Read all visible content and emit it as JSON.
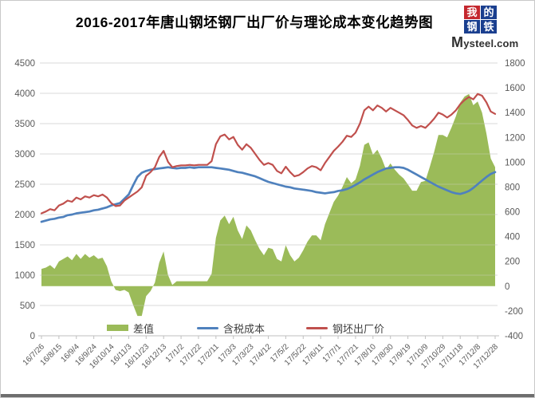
{
  "title": "2016-2017年唐山钢坯钢厂出厂价与理论成本变化趋势图",
  "logo": {
    "squares": [
      "我",
      "的",
      "钢",
      "铁"
    ],
    "site": "Mysteel.com",
    "square_red": "#c4272e",
    "square_blue": "#1a3f8f"
  },
  "legend": {
    "items": [
      {
        "label": "差值",
        "type": "area",
        "color": "#9bbb59"
      },
      {
        "label": "含税成本",
        "type": "line",
        "color": "#4f81bd"
      },
      {
        "label": "钢坯出厂价",
        "type": "line",
        "color": "#c0504d"
      }
    ]
  },
  "chart_data": {
    "type": "area",
    "subtype": "combo: area (right axis) + 2 lines (left axis)",
    "title": "2016-2017年唐山钢坯钢厂出厂价与理论成本变化趋势图",
    "xlabel": "",
    "ylabel": "",
    "grid": "horizontal",
    "legend_position": "bottom",
    "x_tick_labels": [
      "16/7/26",
      "16/8/15",
      "16/9/4",
      "16/9/24",
      "16/10/14",
      "16/11/3",
      "16/11/23",
      "16/12/13",
      "17/1/2",
      "17/1/22",
      "17/2/11",
      "17/3/3",
      "17/3/23",
      "17/4/12",
      "17/5/2",
      "17/5/22",
      "17/6/11",
      "17/7/1",
      "17/7/21",
      "17/8/10",
      "17/8/30",
      "17/9/19",
      "17/10/9",
      "17/10/29",
      "17/11/18",
      "17/12/8",
      "17/12/28"
    ],
    "points_per_tick_interval": 4,
    "sample_interval_days": 5,
    "left_axis": {
      "min": 0,
      "max": 4500,
      "step": 500,
      "ticks": [
        4500,
        4000,
        3500,
        3000,
        2500,
        2000,
        1500,
        1000,
        500,
        0
      ]
    },
    "right_axis": {
      "min": -400,
      "max": 1800,
      "step": 200,
      "ticks": [
        1800,
        1600,
        1400,
        1200,
        1000,
        800,
        600,
        400,
        200,
        0,
        -200,
        -400
      ]
    },
    "colors": {
      "grid": "#d9d9d9",
      "axis": "#bfbfbf",
      "tick_text": "#595959"
    },
    "series": [
      {
        "name": "差值",
        "type": "area",
        "axis": "right",
        "color": "#9bbb59",
        "values": [
          140,
          150,
          170,
          140,
          200,
          220,
          240,
          210,
          260,
          220,
          260,
          230,
          250,
          220,
          230,
          160,
          40,
          -30,
          -40,
          -30,
          -50,
          -150,
          -240,
          -240,
          -80,
          -40,
          30,
          190,
          280,
          90,
          10,
          40,
          40,
          40,
          40,
          40,
          40,
          40,
          40,
          100,
          390,
          530,
          570,
          500,
          560,
          450,
          380,
          490,
          450,
          370,
          300,
          250,
          310,
          300,
          220,
          200,
          330,
          250,
          200,
          230,
          290,
          360,
          410,
          410,
          370,
          500,
          590,
          680,
          730,
          800,
          880,
          830,
          860,
          970,
          1140,
          1160,
          1060,
          1100,
          1030,
          940,
          990,
          940,
          900,
          870,
          820,
          770,
          770,
          840,
          850,
          960,
          1080,
          1220,
          1220,
          1200,
          1280,
          1370,
          1480,
          1530,
          1550,
          1460,
          1490,
          1400,
          1230,
          1030,
          960
        ]
      },
      {
        "name": "含税成本",
        "type": "line",
        "axis": "left",
        "color": "#4f81bd",
        "values": [
          1880,
          1900,
          1920,
          1930,
          1950,
          1960,
          1990,
          2000,
          2020,
          2030,
          2040,
          2050,
          2070,
          2080,
          2100,
          2120,
          2150,
          2170,
          2190,
          2260,
          2330,
          2480,
          2620,
          2690,
          2720,
          2740,
          2750,
          2760,
          2770,
          2780,
          2770,
          2760,
          2770,
          2770,
          2780,
          2770,
          2780,
          2780,
          2780,
          2780,
          2770,
          2760,
          2750,
          2740,
          2720,
          2700,
          2690,
          2670,
          2650,
          2630,
          2600,
          2570,
          2540,
          2520,
          2500,
          2480,
          2460,
          2450,
          2430,
          2420,
          2410,
          2400,
          2390,
          2370,
          2360,
          2350,
          2360,
          2370,
          2390,
          2400,
          2420,
          2450,
          2490,
          2530,
          2580,
          2620,
          2660,
          2700,
          2730,
          2760,
          2770,
          2780,
          2780,
          2770,
          2740,
          2700,
          2660,
          2620,
          2580,
          2540,
          2500,
          2460,
          2430,
          2400,
          2370,
          2350,
          2340,
          2360,
          2390,
          2440,
          2500,
          2560,
          2620,
          2670,
          2700
        ]
      },
      {
        "name": "钢坯出厂价",
        "type": "line",
        "axis": "left",
        "color": "#c0504d",
        "values": [
          2020,
          2050,
          2090,
          2070,
          2150,
          2180,
          2230,
          2210,
          2280,
          2250,
          2300,
          2280,
          2320,
          2300,
          2330,
          2280,
          2190,
          2140,
          2150,
          2230,
          2280,
          2330,
          2380,
          2450,
          2640,
          2700,
          2780,
          2950,
          3050,
          2870,
          2780,
          2800,
          2810,
          2810,
          2820,
          2810,
          2820,
          2820,
          2820,
          2880,
          3160,
          3290,
          3320,
          3240,
          3280,
          3150,
          3070,
          3160,
          3100,
          3000,
          2900,
          2820,
          2850,
          2820,
          2720,
          2680,
          2790,
          2700,
          2630,
          2650,
          2700,
          2760,
          2800,
          2780,
          2730,
          2850,
          2950,
          3050,
          3120,
          3200,
          3300,
          3280,
          3350,
          3500,
          3720,
          3780,
          3720,
          3800,
          3760,
          3700,
          3760,
          3720,
          3680,
          3640,
          3560,
          3470,
          3430,
          3460,
          3430,
          3500,
          3580,
          3680,
          3650,
          3600,
          3650,
          3720,
          3820,
          3890,
          3940,
          3900,
          3990,
          3960,
          3850,
          3700,
          3660
        ]
      }
    ]
  }
}
